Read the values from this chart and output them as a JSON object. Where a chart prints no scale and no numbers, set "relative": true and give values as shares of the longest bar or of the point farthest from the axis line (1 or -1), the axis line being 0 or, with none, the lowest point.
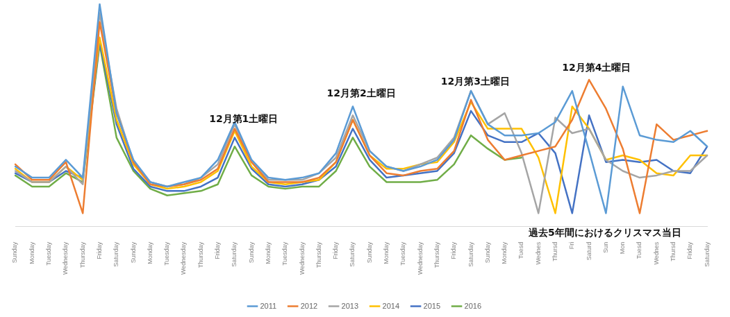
{
  "chart_data": {
    "type": "line",
    "relative": true,
    "categories": [
      "Sunday",
      "Monday",
      "Tuesday",
      "Wednesday",
      "Thursday",
      "Friday",
      "Saturday",
      "Sunday",
      "Monday",
      "Tuesday",
      "Wednesday",
      "Thursday",
      "Friday",
      "Saturday",
      "Sunday",
      "Monday",
      "Tuesday",
      "Wednesday",
      "Thursday",
      "Friday",
      "Saturday",
      "Sunday",
      "Monday",
      "Tuesday",
      "Wednesday",
      "Thursday",
      "Friday",
      "Saturday",
      "Sunday",
      "Monday",
      "Tuesd",
      "Wednes",
      "Thursd",
      "Fri",
      "Saturd",
      "Sun",
      "Mon",
      "Tuesd",
      "Wednes",
      "Thursd",
      "Friday",
      "Saturday"
    ],
    "series": [
      {
        "name": "2011",
        "color": "#5b9bd5",
        "values": [
          0.27,
          0.22,
          0.22,
          0.3,
          0.22,
          1.0,
          0.51,
          0.3,
          0.2,
          0.18,
          0.2,
          0.22,
          0.3,
          0.47,
          0.3,
          0.22,
          0.21,
          0.22,
          0.24,
          0.33,
          0.54,
          0.34,
          0.27,
          0.25,
          0.27,
          0.3,
          0.39,
          0.61,
          0.46,
          0.41,
          0.41,
          0.42,
          0.47,
          0.61,
          0.34,
          0.06,
          0.63,
          0.41,
          0.39,
          0.38,
          0.43,
          0.36
        ]
      },
      {
        "name": "2012",
        "color": "#ed7d31",
        "values": [
          0.28,
          0.21,
          0.21,
          0.29,
          0.06,
          0.92,
          0.51,
          0.29,
          0.19,
          0.18,
          0.19,
          0.21,
          0.26,
          0.44,
          0.29,
          0.2,
          0.2,
          0.2,
          0.22,
          0.29,
          0.48,
          0.32,
          0.24,
          0.23,
          0.25,
          0.26,
          0.34,
          0.57,
          0.39,
          0.3,
          0.32,
          0.34,
          0.36,
          0.48,
          0.66,
          0.53,
          0.35,
          0.06,
          0.46,
          0.39,
          0.41,
          0.43
        ]
      },
      {
        "name": "2013",
        "color": "#a5a5a5",
        "values": [
          0.25,
          0.2,
          0.2,
          0.27,
          0.19,
          0.96,
          0.53,
          0.29,
          0.2,
          0.18,
          0.19,
          0.22,
          0.28,
          0.46,
          0.29,
          0.21,
          0.21,
          0.21,
          0.24,
          0.31,
          0.5,
          0.34,
          0.27,
          0.25,
          0.28,
          0.31,
          0.4,
          0.61,
          0.46,
          0.51,
          0.33,
          0.06,
          0.49,
          0.42,
          0.44,
          0.3,
          0.25,
          0.22,
          0.23,
          0.25,
          0.25,
          0.32
        ]
      },
      {
        "name": "2014",
        "color": "#ffc000",
        "values": [
          0.26,
          0.2,
          0.2,
          0.27,
          0.21,
          0.85,
          0.48,
          0.28,
          0.19,
          0.17,
          0.18,
          0.2,
          0.25,
          0.43,
          0.27,
          0.2,
          0.19,
          0.2,
          0.21,
          0.29,
          0.48,
          0.32,
          0.26,
          0.26,
          0.28,
          0.29,
          0.38,
          0.56,
          0.44,
          0.44,
          0.44,
          0.31,
          0.06,
          0.54,
          0.44,
          0.3,
          0.32,
          0.3,
          0.24,
          0.23,
          0.32,
          0.32
        ]
      },
      {
        "name": "2015",
        "color": "#4472c4",
        "values": [
          0.24,
          0.2,
          0.2,
          0.25,
          0.22,
          0.83,
          0.46,
          0.26,
          0.18,
          0.16,
          0.16,
          0.18,
          0.22,
          0.4,
          0.26,
          0.19,
          0.18,
          0.19,
          0.21,
          0.27,
          0.44,
          0.3,
          0.22,
          0.23,
          0.24,
          0.25,
          0.33,
          0.52,
          0.41,
          0.38,
          0.38,
          0.42,
          0.33,
          0.06,
          0.5,
          0.29,
          0.3,
          0.29,
          0.3,
          0.25,
          0.24,
          0.36
        ]
      },
      {
        "name": "2016",
        "color": "#70ad47",
        "values": [
          0.23,
          0.18,
          0.18,
          0.24,
          0.2,
          0.82,
          0.4,
          0.25,
          0.17,
          0.14,
          0.15,
          0.16,
          0.19,
          0.36,
          0.23,
          0.18,
          0.17,
          0.18,
          0.18,
          0.25,
          0.4,
          0.27,
          0.2,
          0.2,
          0.2,
          0.21,
          0.28,
          0.41,
          0.35,
          0.3,
          0.31,
          null,
          null,
          null,
          null,
          null,
          null,
          null,
          null,
          null,
          null,
          null
        ]
      }
    ],
    "annotations": [
      "12月第1土曜日",
      "12月第2土曜日",
      "12月第3土曜日",
      "12月第4土曜日",
      "過去5年間におけるクリスマス当日"
    ],
    "legend": "bottom",
    "grid": false,
    "marker": "none",
    "line_style": "solid"
  }
}
